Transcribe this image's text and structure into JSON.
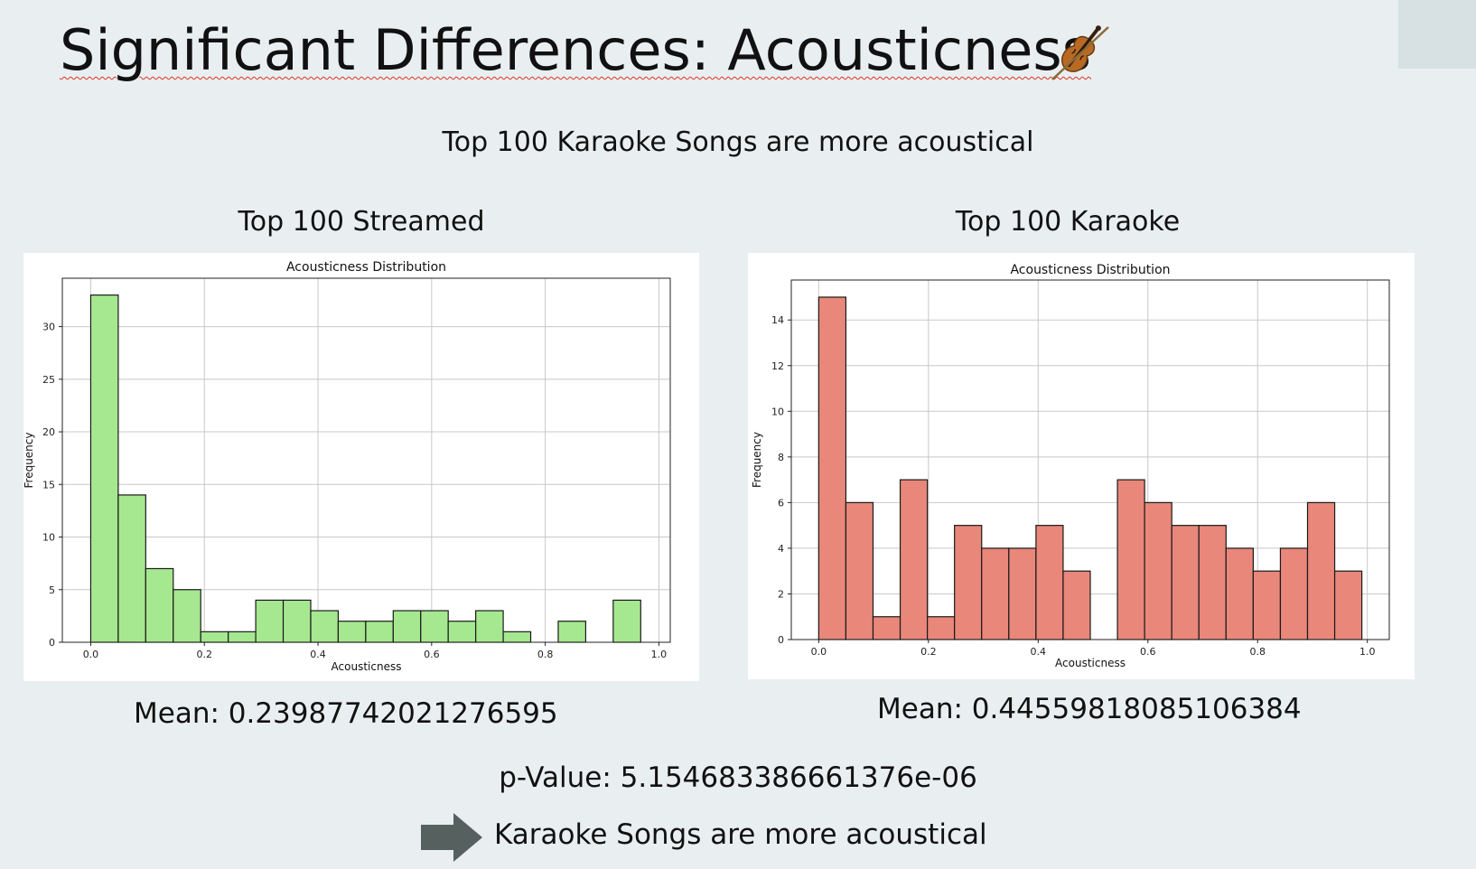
{
  "slide": {
    "title": "Significant Differences: Acousticness",
    "subtitle": "Top 100 Karaoke Songs are more acoustical",
    "icon": "violin-icon",
    "left_heading": "Top 100 Streamed",
    "right_heading": "Top 100 Karaoke",
    "left_mean": "Mean: 0.23987742021276595",
    "right_mean": "Mean: 0.44559818085106384",
    "p_value": "p-Value: 5.154683386661376e-06",
    "conclusion": "Karaoke Songs are more acoustical"
  },
  "chart_data": [
    {
      "type": "bar",
      "title": "Acousticness Distribution",
      "xlabel": "Acousticness",
      "ylabel": "Frequency",
      "bin_width": 0.0484,
      "bin_start": 0,
      "values": [
        33,
        14,
        7,
        5,
        1,
        1,
        4,
        4,
        3,
        2,
        2,
        3,
        3,
        2,
        3,
        1,
        0,
        2,
        0,
        4
      ],
      "xlim": [
        -0.05,
        1.02
      ],
      "ylim": [
        0,
        34.6
      ],
      "xticks": [
        0.0,
        0.2,
        0.4,
        0.6,
        0.8,
        1.0
      ],
      "yticks": [
        0,
        5,
        10,
        15,
        20,
        25,
        30
      ],
      "color": "#a6e890",
      "grid": true
    },
    {
      "type": "bar",
      "title": "Acousticness Distribution",
      "xlabel": "Acousticness",
      "ylabel": "Frequency",
      "bin_width": 0.0495,
      "bin_start": 0,
      "values": [
        15,
        6,
        1,
        7,
        1,
        5,
        4,
        4,
        5,
        3,
        0,
        7,
        6,
        5,
        5,
        4,
        3,
        4,
        6,
        3
      ],
      "xlim": [
        -0.05,
        1.04
      ],
      "ylim": [
        0,
        15.75
      ],
      "xticks": [
        0.0,
        0.2,
        0.4,
        0.6,
        0.8,
        1.0
      ],
      "yticks": [
        0,
        2,
        4,
        6,
        8,
        10,
        12,
        14
      ],
      "color": "#e8877a",
      "grid": true
    }
  ]
}
